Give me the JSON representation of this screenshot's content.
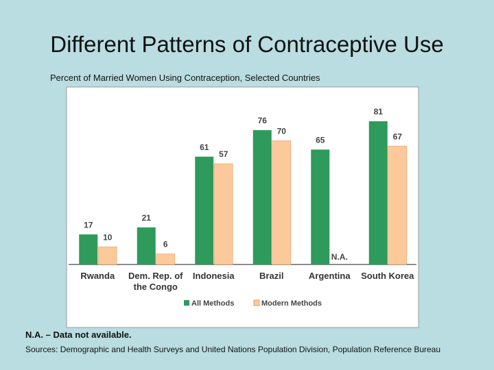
{
  "title": "Different Patterns of Contraceptive Use",
  "footnote": "N.A. – Data not available.",
  "source": "Sources: Demographic and Health Surveys and United Nations Population Division, Population Reference Bureau",
  "chart_data": {
    "type": "bar",
    "title": "Percent of Married Women Using Contraception, Selected Countries",
    "categories": [
      "Rwanda",
      "Dem. Rep. of the Congo",
      "Indonesia",
      "Brazil",
      "Argentina",
      "South Korea"
    ],
    "series": [
      {
        "name": "All Methods",
        "color": "#2e9a5c",
        "values": [
          17,
          21,
          61,
          76,
          65,
          81
        ]
      },
      {
        "name": "Modern Methods",
        "color": "#fcc99a",
        "values": [
          10,
          6,
          57,
          70,
          null,
          67
        ],
        "value_labels": [
          "10",
          "6",
          "57",
          "70",
          "N.A.",
          "67"
        ]
      }
    ],
    "ylim": [
      0,
      100
    ]
  }
}
